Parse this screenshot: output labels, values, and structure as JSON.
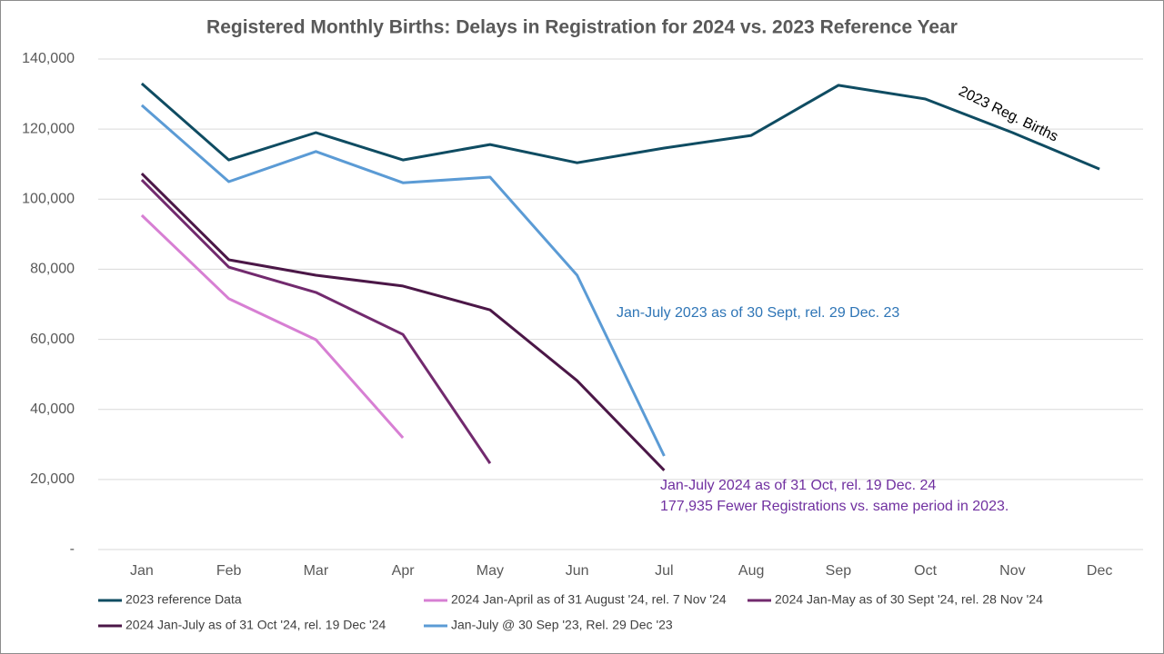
{
  "chart_data": {
    "type": "line",
    "title": "Registered Monthly Births: Delays in Registration for 2024 vs. 2023 Reference Year",
    "categories": [
      "Jan",
      "Feb",
      "Mar",
      "Apr",
      "May",
      "Jun",
      "Jul",
      "Aug",
      "Sep",
      "Oct",
      "Nov",
      "Dec"
    ],
    "ylim": [
      0,
      140000
    ],
    "yticks": [
      {
        "value": 0,
        "label": "-"
      },
      {
        "value": 20000,
        "label": "20,000"
      },
      {
        "value": 40000,
        "label": "40,000"
      },
      {
        "value": 60000,
        "label": "60,000"
      },
      {
        "value": 80000,
        "label": "80,000"
      },
      {
        "value": 100000,
        "label": "100,000"
      },
      {
        "value": 120000,
        "label": "120,000"
      },
      {
        "value": 140000,
        "label": "140,000"
      }
    ],
    "grid": true,
    "legend": "bottom",
    "series": [
      {
        "name": "2023 reference Data",
        "color": "#0f4c62",
        "values": [
          133000,
          111200,
          119000,
          111200,
          115600,
          110400,
          114600,
          118200,
          132500,
          128600,
          119000,
          108600
        ]
      },
      {
        "name": "2024 Jan-April as of 31 August '24, rel. 7 Nov '24",
        "color": "#d77fd3",
        "values": [
          95400,
          71600,
          59900,
          31900,
          null,
          null,
          null,
          null,
          null,
          null,
          null,
          null
        ]
      },
      {
        "name": "2024 Jan-May as of 30 Sept '24, rel. 28 Nov '24",
        "color": "#722a6e",
        "values": [
          105500,
          80600,
          73400,
          61400,
          24600,
          null,
          null,
          null,
          null,
          null,
          null,
          null
        ]
      },
      {
        "name": "2024 Jan-July as of 31 Oct '24, rel. 19 Dec '24",
        "color": "#4b1747",
        "values": [
          107300,
          82700,
          78300,
          75200,
          68400,
          48200,
          22600,
          null,
          null,
          null,
          null,
          null
        ]
      },
      {
        "name": "Jan-July @ 30 Sep '23, Rel. 29 Dec '23",
        "color": "#5b9bd5",
        "values": [
          126800,
          105000,
          113600,
          104700,
          106300,
          78300,
          26700,
          null,
          null,
          null,
          null,
          null
        ]
      }
    ],
    "annotations": [
      "2023 Reg. Births",
      "Jan-July 2023 as of 30 Sept, rel. 29 Dec. 23",
      "Jan-July 2024 as of 31 Oct, rel. 19 Dec. 24",
      "177,935 Fewer Registrations vs. same period in 2023."
    ]
  }
}
